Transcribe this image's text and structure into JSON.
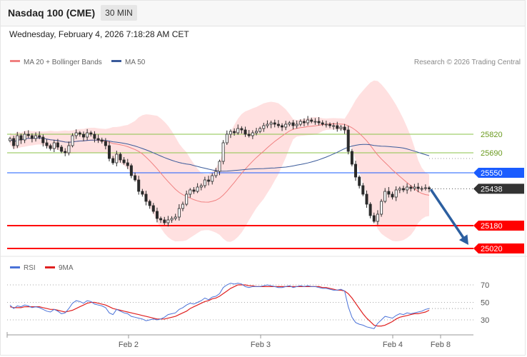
{
  "header": {
    "title": "Nasdaq 100 (CME)",
    "timeframe": "30 MIN",
    "date": "Wednesday, February 4, 2026 7:18:28 AM CET"
  },
  "legend": {
    "ma20_label": "MA 20 + Bollinger Bands",
    "ma50_label": "MA 50",
    "copyright": "Research © 2026 Trading Central"
  },
  "rsi_legend": {
    "rsi_label": "RSI",
    "ma9_label": "9MA"
  },
  "colors": {
    "ma20": "#f08080",
    "ma50": "#3a5a9a",
    "bands": "#ffd6d6",
    "candle": "#2b2b2b",
    "support": "#ff0000",
    "pivot": "#1a5cff",
    "resistance": "#8bc34a",
    "arrow": "#2c5fa0",
    "rsi": "#4a72d8",
    "rsi_ma": "#e02020"
  },
  "chart_data": [
    {
      "type": "candlestick",
      "title": "Nasdaq 100 (CME)",
      "x_ticks": [
        "Feb 2",
        "Feb 3",
        "Feb 4",
        "Feb 8"
      ],
      "ylim": [
        25000,
        25950
      ],
      "price_levels": [
        {
          "label": "25820",
          "value": 25820,
          "kind": "resistance"
        },
        {
          "label": "25690",
          "value": 25690,
          "kind": "resistance"
        },
        {
          "label": "25550",
          "value": 25550,
          "kind": "pivot"
        },
        {
          "label": "25438",
          "value": 25438,
          "kind": "last"
        },
        {
          "label": "25180",
          "value": 25180,
          "kind": "support"
        },
        {
          "label": "25020",
          "value": 25020,
          "kind": "support"
        }
      ],
      "close": [
        25790,
        25740,
        25810,
        25780,
        25820,
        25810,
        25790,
        25810,
        25800,
        25760,
        25740,
        25720,
        25760,
        25730,
        25700,
        25690,
        25740,
        25810,
        25830,
        25820,
        25800,
        25830,
        25820,
        25790,
        25780,
        25770,
        25740,
        25650,
        25620,
        25680,
        25640,
        25620,
        25600,
        25530,
        25500,
        25420,
        25400,
        25350,
        25320,
        25280,
        25230,
        25220,
        25200,
        25220,
        25230,
        25240,
        25300,
        25330,
        25400,
        25430,
        25420,
        25450,
        25460,
        25500,
        25490,
        25530,
        25560,
        25630,
        25760,
        25820,
        25840,
        25830,
        25860,
        25850,
        25820,
        25810,
        25830,
        25840,
        25860,
        25880,
        25890,
        25900,
        25890,
        25880,
        25870,
        25890,
        25900,
        25880,
        25890,
        25910,
        25900,
        25920,
        25910,
        25910,
        25900,
        25890,
        25890,
        25880,
        25880,
        25860,
        25870,
        25850,
        25700,
        25610,
        25520,
        25460,
        25400,
        25330,
        25250,
        25210,
        25260,
        25350,
        25420,
        25400,
        25380,
        25430,
        25440,
        25430,
        25450,
        25440,
        25450,
        25440,
        25440,
        25445,
        25438
      ],
      "ma20_last": 25470,
      "ma50_last": 25650,
      "forecast_arrow_target": 25020
    },
    {
      "type": "line",
      "title": "RSI",
      "series": [
        {
          "name": "RSI",
          "values": [
            47,
            43,
            46,
            45,
            47,
            46,
            44,
            45,
            44,
            42,
            40,
            39,
            42,
            40,
            37,
            38,
            43,
            49,
            52,
            51,
            49,
            52,
            51,
            48,
            47,
            46,
            44,
            38,
            36,
            42,
            40,
            38,
            37,
            34,
            33,
            32,
            31,
            29,
            30,
            31,
            30,
            31,
            33,
            36,
            37,
            38,
            42,
            44,
            47,
            49,
            48,
            50,
            52,
            55,
            53,
            56,
            57,
            60,
            67,
            70,
            72,
            71,
            72,
            71,
            68,
            67,
            68,
            68,
            68,
            69,
            70,
            69,
            68,
            67,
            67,
            68,
            69,
            67,
            68,
            69,
            68,
            69,
            68,
            68,
            67,
            66,
            66,
            65,
            64,
            64,
            65,
            63,
            45,
            33,
            27,
            25,
            24,
            22,
            21,
            20,
            26,
            30,
            34,
            33,
            32,
            35,
            37,
            36,
            38,
            37,
            38,
            39,
            40,
            42,
            43
          ]
        },
        {
          "name": "9MA",
          "values": [
            45,
            44,
            44,
            44,
            45,
            45,
            45,
            45,
            45,
            44,
            43,
            42,
            42,
            41,
            40,
            39,
            40,
            41,
            43,
            45,
            47,
            49,
            50,
            50,
            49,
            48,
            47,
            45,
            43,
            42,
            41,
            40,
            39,
            38,
            37,
            36,
            35,
            34,
            33,
            32,
            31,
            31,
            31,
            32,
            33,
            34,
            36,
            38,
            40,
            43,
            45,
            47,
            49,
            51,
            52,
            54,
            55,
            57,
            60,
            63,
            66,
            68,
            70,
            70,
            70,
            69,
            69,
            68,
            68,
            68,
            68,
            68,
            68,
            68,
            68,
            68,
            68,
            68,
            68,
            68,
            68,
            68,
            68,
            68,
            68,
            67,
            67,
            66,
            65,
            64,
            64,
            63,
            60,
            55,
            49,
            43,
            37,
            32,
            28,
            24,
            23,
            23,
            24,
            26,
            28,
            31,
            33,
            34,
            35,
            36,
            37,
            37,
            38,
            39,
            41
          ]
        }
      ],
      "y_ticks": [
        70,
        50,
        30
      ],
      "ylim": [
        15,
        80
      ]
    }
  ]
}
